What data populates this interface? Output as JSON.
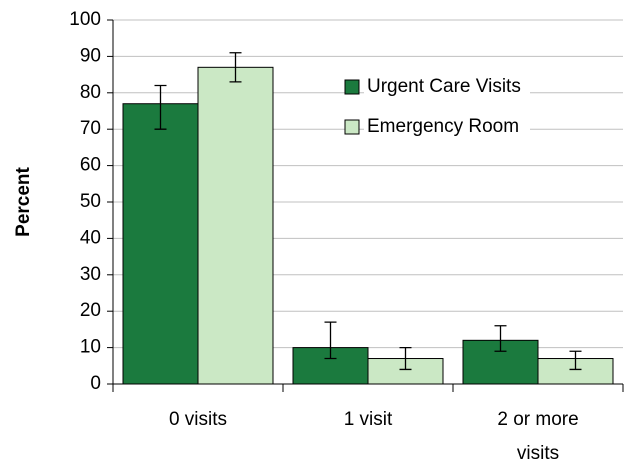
{
  "chart_data": {
    "type": "bar",
    "y_label": "Percent",
    "categories": [
      "0 visits",
      "1 visit",
      "2 or more visits"
    ],
    "series": [
      {
        "name": "Urgent Care Visits",
        "color": "#1b7a3e",
        "values": [
          77,
          10,
          12
        ],
        "lower": [
          70,
          7,
          9
        ],
        "upper": [
          82,
          17,
          16
        ]
      },
      {
        "name": "Emergency Room",
        "color": "#cbe8c5",
        "values": [
          87,
          7,
          7
        ],
        "lower": [
          83,
          4,
          4
        ],
        "upper": [
          91,
          10,
          9
        ]
      }
    ],
    "ylim": [
      0,
      100
    ],
    "yticks": [
      0,
      10,
      20,
      30,
      40,
      50,
      60,
      70,
      80,
      90,
      100
    ],
    "grid": true
  }
}
